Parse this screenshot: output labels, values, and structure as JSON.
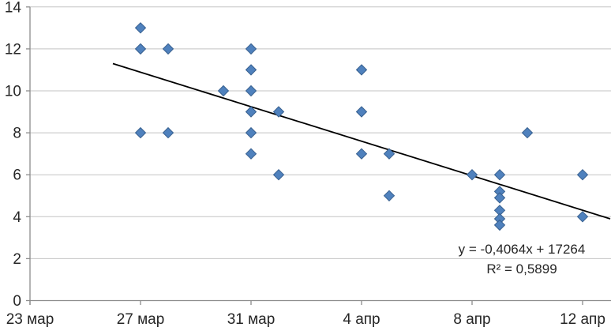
{
  "chart_data": {
    "type": "scatter",
    "title": "",
    "xlabel": "",
    "ylabel": "",
    "x_axis": {
      "tick_labels": [
        "23 мар",
        "27 мар",
        "31 мар",
        "4 апр",
        "8 апр",
        "12 апр"
      ],
      "tick_days": [
        0,
        4,
        8,
        12,
        16,
        20
      ],
      "range_days": [
        0,
        21
      ]
    },
    "y_axis": {
      "tick_labels": [
        "0",
        "2",
        "4",
        "6",
        "8",
        "10",
        "12",
        "14"
      ],
      "ticks": [
        0,
        2,
        4,
        6,
        8,
        10,
        12,
        14
      ],
      "range": [
        0,
        14
      ]
    },
    "grid": true,
    "legend": "none",
    "points": [
      {
        "date": "27 мар",
        "day": 4,
        "value": 13
      },
      {
        "date": "27 мар",
        "day": 4,
        "value": 12
      },
      {
        "date": "28 мар",
        "day": 5,
        "value": 12
      },
      {
        "date": "27 мар",
        "day": 4,
        "value": 8
      },
      {
        "date": "28 мар",
        "day": 5,
        "value": 8
      },
      {
        "date": "30 мар",
        "day": 7,
        "value": 10
      },
      {
        "date": "31 мар",
        "day": 8,
        "value": 12
      },
      {
        "date": "31 мар",
        "day": 8,
        "value": 11
      },
      {
        "date": "31 мар",
        "day": 8,
        "value": 10
      },
      {
        "date": "31 мар",
        "day": 8,
        "value": 9
      },
      {
        "date": "31 мар",
        "day": 8,
        "value": 8
      },
      {
        "date": "31 мар",
        "day": 8,
        "value": 7
      },
      {
        "date": "1 апр",
        "day": 9,
        "value": 9
      },
      {
        "date": "1 апр",
        "day": 9,
        "value": 6
      },
      {
        "date": "4 апр",
        "day": 12,
        "value": 11
      },
      {
        "date": "4 апр",
        "day": 12,
        "value": 9
      },
      {
        "date": "4 апр",
        "day": 12,
        "value": 7
      },
      {
        "date": "5 апр",
        "day": 13,
        "value": 7
      },
      {
        "date": "5 апр",
        "day": 13,
        "value": 5
      },
      {
        "date": "8 апр",
        "day": 16,
        "value": 6
      },
      {
        "date": "9 апр",
        "day": 17,
        "value": 6
      },
      {
        "date": "9 апр",
        "day": 17,
        "value": 5.2
      },
      {
        "date": "9 апр",
        "day": 17,
        "value": 4.9
      },
      {
        "date": "9 апр",
        "day": 17,
        "value": 4.3
      },
      {
        "date": "9 апр",
        "day": 17,
        "value": 3.9
      },
      {
        "date": "9 апр",
        "day": 17,
        "value": 3.6
      },
      {
        "date": "10 апр",
        "day": 18,
        "value": 8
      },
      {
        "date": "12 апр",
        "day": 20,
        "value": 6
      },
      {
        "date": "12 апр",
        "day": 20,
        "value": 4
      }
    ],
    "trendline": {
      "equation": "y = -0,4064x + 17264",
      "r_squared": "R² = 0,5899",
      "start": {
        "day": 3.0,
        "value": 11.3
      },
      "end": {
        "day": 21.0,
        "value": 3.9
      }
    },
    "colors": {
      "marker_fill": "#4f81bd",
      "marker_stroke": "#38608f",
      "gridline": "#c3c3c3",
      "axis": "#8c8c8c",
      "trendline": "#000000",
      "text": "#262626"
    }
  }
}
